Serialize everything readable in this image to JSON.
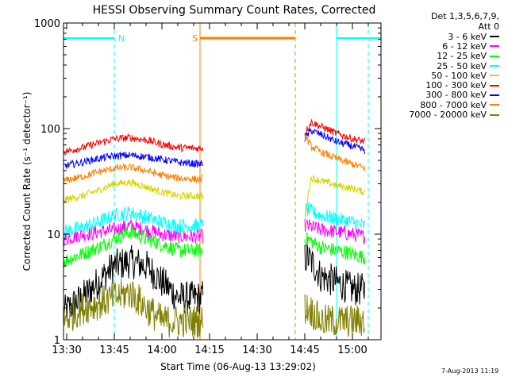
{
  "chart_data": {
    "type": "line",
    "title": "HESSI Observing Summary Count Rates, Corrected",
    "xlabel": "Start Time (06-Aug-13 13:29:02)",
    "ylabel": "Corrected Count Rate (s⁻¹ detector⁻¹)",
    "y_scale": "log",
    "xlim": [
      "13:29",
      "15:09"
    ],
    "ylim": [
      1,
      1000
    ],
    "x_ticks": [
      "13:30",
      "13:45",
      "14:00",
      "14:15",
      "14:30",
      "14:45",
      "15:00"
    ],
    "y_ticks": [
      "1",
      "10",
      "100",
      "1000"
    ],
    "legend_title": [
      "Det 1,3,5,6,7,9,",
      "Att 0"
    ],
    "legend_position": "right",
    "grid": false,
    "data_gap": [
      "14:13",
      "14:45"
    ],
    "series": [
      {
        "name": "3 - 6 keV",
        "color": "#000000",
        "x": [
          "13:29",
          "13:35",
          "13:40",
          "13:45",
          "13:50",
          "13:55",
          "14:00",
          "14:05",
          "14:12",
          "14:46",
          "14:50",
          "14:55",
          "15:00",
          "15:04"
        ],
        "y": [
          1.8,
          2.5,
          3.5,
          5.0,
          5.5,
          5.0,
          3.5,
          2.5,
          2.5,
          6.0,
          4.0,
          3.5,
          3.0,
          3.0
        ]
      },
      {
        "name": "6 - 12 keV",
        "color": "#ff00ff",
        "x": [
          "13:29",
          "13:35",
          "13:40",
          "13:45",
          "13:50",
          "13:55",
          "14:00",
          "14:05",
          "14:12",
          "14:46",
          "14:50",
          "14:55",
          "15:00",
          "15:04"
        ],
        "y": [
          9.0,
          10.0,
          10.5,
          11.0,
          12.0,
          11.0,
          10.0,
          9.5,
          9.5,
          12.0,
          11.0,
          10.5,
          10.0,
          9.5
        ]
      },
      {
        "name": "12 - 25 keV",
        "color": "#00ff00",
        "x": [
          "13:29",
          "13:35",
          "13:40",
          "13:45",
          "13:50",
          "13:55",
          "14:00",
          "14:05",
          "14:12",
          "14:46",
          "14:50",
          "14:55",
          "15:00",
          "15:04"
        ],
        "y": [
          5.5,
          6.5,
          7.5,
          9.0,
          10.5,
          9.0,
          8.0,
          7.0,
          7.0,
          9.0,
          7.5,
          7.0,
          6.5,
          6.0
        ]
      },
      {
        "name": "25 - 50 keV",
        "color": "#00ffff",
        "x": [
          "13:29",
          "13:35",
          "13:40",
          "13:45",
          "13:50",
          "13:55",
          "14:00",
          "14:05",
          "14:12",
          "14:46",
          "14:50",
          "14:55",
          "15:00",
          "15:04"
        ],
        "y": [
          10.5,
          11.5,
          13.0,
          15.0,
          16.0,
          14.5,
          13.0,
          12.0,
          12.0,
          17.0,
          15.0,
          14.0,
          13.0,
          12.0
        ]
      },
      {
        "name": "50 - 100 keV",
        "color": "#d4d400",
        "x": [
          "13:29",
          "13:35",
          "13:40",
          "13:45",
          "13:50",
          "13:55",
          "14:00",
          "14:05",
          "14:12",
          "14:45",
          "14:47",
          "14:50",
          "14:55",
          "15:00",
          "15:04"
        ],
        "y": [
          21.0,
          23.0,
          26.0,
          30.0,
          31.0,
          28.0,
          25.0,
          23.0,
          23.0,
          12.0,
          34.0,
          32.0,
          29.0,
          27.0,
          25.0
        ]
      },
      {
        "name": "100 - 300 keV",
        "color": "#ff0000",
        "x": [
          "13:29",
          "13:35",
          "13:40",
          "13:45",
          "13:50",
          "13:55",
          "14:00",
          "14:05",
          "14:12",
          "14:45",
          "14:47",
          "14:50",
          "14:55",
          "15:00",
          "15:04"
        ],
        "y": [
          60,
          66,
          73,
          80,
          82,
          78,
          71,
          66,
          65,
          90,
          115,
          105,
          90,
          80,
          75
        ]
      },
      {
        "name": "300 - 800 keV",
        "color": "#0000ff",
        "x": [
          "13:29",
          "13:35",
          "13:40",
          "13:45",
          "13:50",
          "13:55",
          "14:00",
          "14:05",
          "14:12",
          "14:45",
          "14:47",
          "14:50",
          "14:55",
          "15:00",
          "15:04"
        ],
        "y": [
          44,
          48,
          52,
          55,
          56,
          54,
          51,
          48,
          46,
          80,
          96,
          88,
          75,
          68,
          62
        ]
      },
      {
        "name": "800 - 7000 keV",
        "color": "#ff8000",
        "x": [
          "13:29",
          "13:35",
          "13:40",
          "13:45",
          "13:50",
          "13:55",
          "14:00",
          "14:05",
          "14:12",
          "14:45",
          "14:47",
          "14:50",
          "14:55",
          "15:00",
          "15:04"
        ],
        "y": [
          32,
          35,
          39,
          42,
          43,
          40,
          36,
          34,
          33,
          85,
          68,
          60,
          52,
          46,
          42
        ]
      },
      {
        "name": "7000 - 20000 keV",
        "color": "#808000",
        "x": [
          "13:29",
          "13:35",
          "13:40",
          "13:45",
          "13:50",
          "13:55",
          "14:00",
          "14:05",
          "14:12",
          "14:46",
          "14:50",
          "14:55",
          "15:00",
          "15:04"
        ],
        "y": [
          1.5,
          2.0,
          2.2,
          2.5,
          2.8,
          2.0,
          1.5,
          1.5,
          1.5,
          2.0,
          1.5,
          1.5,
          1.5,
          1.5
        ]
      }
    ],
    "annotations": [
      {
        "label": "N",
        "color": "#00ffff",
        "kind": "night",
        "intervals": [
          [
            "13:29",
            "13:45"
          ],
          [
            "14:55",
            "15:09"
          ]
        ],
        "dashed_bounds": [
          "13:45",
          "15:05"
        ],
        "solid_bounds": [
          "13:29",
          "14:55"
        ]
      },
      {
        "label": "S",
        "color": "#ff8000",
        "kind": "saa",
        "intervals": [
          [
            "14:12",
            "14:42"
          ]
        ],
        "solid_bounds": [
          "14:12"
        ],
        "dashed_bounds": [
          "14:42"
        ]
      }
    ]
  },
  "legend_entries": [
    {
      "label": "3 - 6 keV",
      "color": "#000000"
    },
    {
      "label": "6 - 12 keV",
      "color": "#ff00ff"
    },
    {
      "label": "12 - 25 keV",
      "color": "#00ff00"
    },
    {
      "label": "25 - 50 keV",
      "color": "#00ffff"
    },
    {
      "label": "50 - 100 keV",
      "color": "#d4d400"
    },
    {
      "label": "100 - 300 keV",
      "color": "#ff0000"
    },
    {
      "label": "300 - 800 keV",
      "color": "#0000ff"
    },
    {
      "label": "800 - 7000 keV",
      "color": "#ff8000"
    },
    {
      "label": "7000 - 20000 keV",
      "color": "#808000"
    }
  ],
  "footer_stamp": "7-Aug-2013 11:19"
}
